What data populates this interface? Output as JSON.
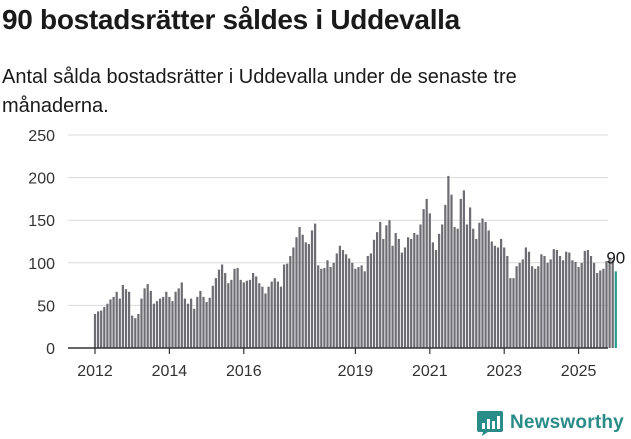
{
  "title": "90 bostadsrätter såldes i Uddevalla",
  "subtitle": "Antal sålda bostadsrätter i Uddevalla under de senaste tre månaderna.",
  "logo": {
    "text": "Newsworthy",
    "icon": "chart-bubble-icon"
  },
  "colors": {
    "bar": "#6e6d73",
    "highlight": "#2a9a95",
    "grid": "#d9d9d9",
    "axis": "#333333",
    "brand": "#2a8c88"
  },
  "chart_data": {
    "type": "bar",
    "ylim": [
      0,
      250
    ],
    "yticks": [
      0,
      50,
      100,
      150,
      200,
      250
    ],
    "xtick_labels": [
      "2012",
      "2014",
      "2016",
      "2019",
      "2021",
      "2023",
      "2025"
    ],
    "grid": true,
    "legend": "none",
    "value_label": "90",
    "highlight_last": true,
    "start": "2012-01",
    "end": "2025-09",
    "values": [
      40,
      43,
      44,
      48,
      52,
      57,
      60,
      66,
      58,
      74,
      69,
      66,
      38,
      35,
      40,
      58,
      70,
      75,
      67,
      52,
      55,
      58,
      60,
      66,
      60,
      55,
      66,
      70,
      77,
      58,
      52,
      58,
      46,
      60,
      67,
      60,
      54,
      59,
      73,
      82,
      92,
      98,
      88,
      76,
      80,
      93,
      94,
      80,
      77,
      79,
      80,
      88,
      84,
      76,
      72,
      64,
      72,
      78,
      82,
      78,
      72,
      98,
      99,
      108,
      118,
      130,
      142,
      133,
      124,
      122,
      138,
      146,
      97,
      93,
      94,
      103,
      95,
      100,
      111,
      120,
      115,
      110,
      105,
      100,
      93,
      95,
      97,
      90,
      108,
      111,
      127,
      136,
      148,
      128,
      144,
      150,
      120,
      135,
      128,
      112,
      118,
      130,
      128,
      135,
      133,
      145,
      163,
      175,
      158,
      124,
      115,
      134,
      145,
      168,
      202,
      180,
      142,
      140,
      175,
      185,
      145,
      165,
      140,
      128,
      147,
      152,
      148,
      138,
      125,
      120,
      118,
      128,
      118,
      108,
      82,
      82,
      96,
      100,
      104,
      118,
      113,
      96,
      93,
      96,
      110,
      108,
      100,
      104,
      116,
      115,
      108,
      103,
      113,
      112,
      103,
      101,
      95,
      100,
      114,
      115,
      108,
      100,
      88,
      91,
      93,
      102,
      106,
      103,
      90
    ]
  }
}
